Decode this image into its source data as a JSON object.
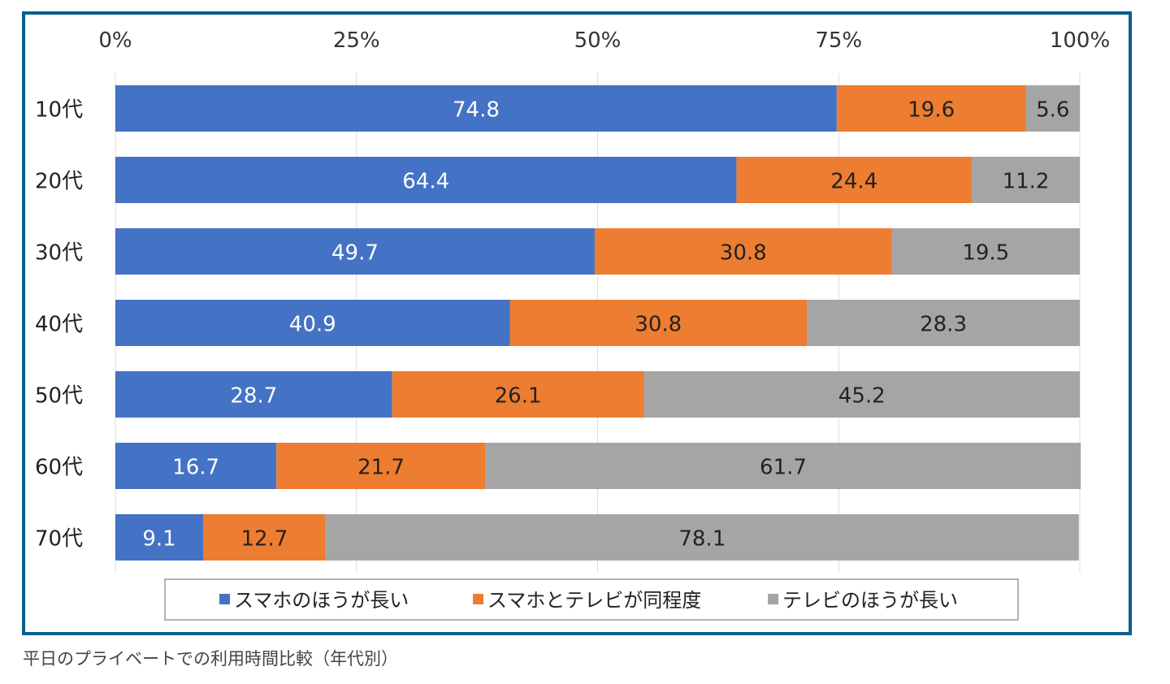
{
  "caption": "平日のプライベートでの利用時間比較（年代別）",
  "colors": {
    "frame": "#0b5e8e",
    "blue": "#4472c4",
    "orange": "#ed7d31",
    "gray": "#a5a5a5"
  },
  "chart_data": {
    "type": "bar",
    "orientation": "horizontal",
    "stacked": "percent",
    "title": "",
    "xlabel": "",
    "ylabel": "",
    "xlim": [
      0,
      100
    ],
    "x_ticks": [
      "0%",
      "25%",
      "50%",
      "75%",
      "100%"
    ],
    "x_axis_position": "top",
    "grid": true,
    "legend_position": "bottom",
    "categories": [
      "10代",
      "20代",
      "30代",
      "40代",
      "50代",
      "60代",
      "70代"
    ],
    "series": [
      {
        "name": "スマホのほうが長い",
        "color": "#4472c4",
        "label_color": "#ffffff",
        "values": [
          74.8,
          64.4,
          49.7,
          40.9,
          28.7,
          16.7,
          9.1
        ]
      },
      {
        "name": "スマホとテレビが同程度",
        "color": "#ed7d31",
        "label_color": "#222222",
        "values": [
          19.6,
          24.4,
          30.8,
          30.8,
          26.1,
          21.7,
          12.7
        ]
      },
      {
        "name": "テレビのほうが長い",
        "color": "#a5a5a5",
        "label_color": "#222222",
        "values": [
          5.6,
          11.2,
          19.5,
          28.3,
          45.2,
          61.7,
          78.1
        ]
      }
    ]
  }
}
